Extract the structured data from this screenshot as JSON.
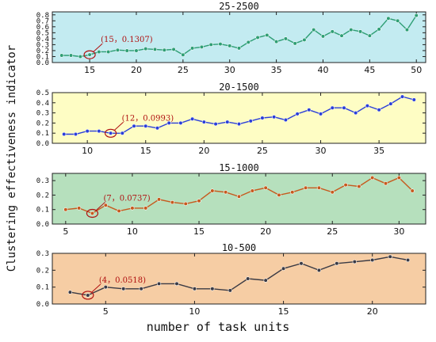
{
  "figure": {
    "ylabel": "Clustering effectiveness indicator",
    "xlabel": "number of task units"
  },
  "chart_data": [
    {
      "type": "line",
      "title": "25-2500",
      "background": "#c3ebf1",
      "color": "#2e9e74",
      "x": [
        12,
        13,
        14,
        15,
        16,
        17,
        18,
        19,
        20,
        21,
        22,
        23,
        24,
        25,
        26,
        27,
        28,
        29,
        30,
        31,
        32,
        33,
        34,
        35,
        36,
        37,
        38,
        39,
        40,
        41,
        42,
        43,
        44,
        45,
        46,
        47,
        48,
        49,
        50
      ],
      "values": [
        0.12,
        0.12,
        0.1,
        0.1307,
        0.18,
        0.18,
        0.21,
        0.2,
        0.2,
        0.23,
        0.22,
        0.21,
        0.22,
        0.13,
        0.24,
        0.26,
        0.3,
        0.31,
        0.28,
        0.24,
        0.34,
        0.42,
        0.46,
        0.35,
        0.4,
        0.32,
        0.38,
        0.55,
        0.44,
        0.52,
        0.45,
        0.55,
        0.52,
        0.45,
        0.56,
        0.74,
        0.7,
        0.55,
        0.79
      ],
      "xlim": [
        11,
        51
      ],
      "ylim": [
        0,
        0.85
      ],
      "xticks": [
        15,
        20,
        25,
        30,
        35,
        40,
        45,
        50
      ],
      "yticks": [
        0,
        0.1,
        0.2,
        0.3,
        0.4,
        0.5,
        0.6,
        0.7,
        0.8
      ],
      "ytick_labels": [
        "0.0",
        "0.1",
        "0.2",
        "0.3",
        "0.4",
        "0.5",
        "0.6",
        "0.7",
        "0.8"
      ],
      "annotation": {
        "x": 15,
        "y": 0.1307,
        "text": "(15，0.1307)"
      }
    },
    {
      "type": "line",
      "title": "20-1500",
      "background": "#fefdc4",
      "color": "#2b3fd8",
      "x": [
        8,
        9,
        10,
        11,
        12,
        13,
        14,
        15,
        16,
        17,
        18,
        19,
        20,
        21,
        22,
        23,
        24,
        25,
        26,
        27,
        28,
        29,
        30,
        31,
        32,
        33,
        34,
        35,
        36,
        37,
        38
      ],
      "values": [
        0.09,
        0.09,
        0.12,
        0.12,
        0.0993,
        0.1,
        0.17,
        0.17,
        0.15,
        0.2,
        0.2,
        0.24,
        0.21,
        0.19,
        0.21,
        0.19,
        0.22,
        0.25,
        0.26,
        0.23,
        0.29,
        0.33,
        0.29,
        0.35,
        0.35,
        0.3,
        0.37,
        0.33,
        0.39,
        0.46,
        0.43
      ],
      "xlim": [
        7,
        39
      ],
      "ylim": [
        0,
        0.5
      ],
      "xticks": [
        10,
        15,
        20,
        25,
        30,
        35
      ],
      "yticks": [
        0,
        0.1,
        0.2,
        0.3,
        0.4,
        0.5
      ],
      "ytick_labels": [
        "0.0",
        "0.1",
        "0.2",
        "0.3",
        "0.4",
        "0.5"
      ],
      "annotation": {
        "x": 12,
        "y": 0.0993,
        "text": "(12，0.0993)"
      }
    },
    {
      "type": "line",
      "title": "15-1000",
      "background": "#b6e0bd",
      "color": "#c65a1e",
      "x": [
        5,
        6,
        7,
        8,
        9,
        10,
        11,
        12,
        13,
        14,
        15,
        16,
        17,
        18,
        19,
        20,
        21,
        22,
        23,
        24,
        25,
        26,
        27,
        28,
        29,
        30,
        31
      ],
      "values": [
        0.1,
        0.11,
        0.0737,
        0.13,
        0.09,
        0.11,
        0.11,
        0.17,
        0.15,
        0.14,
        0.16,
        0.23,
        0.22,
        0.19,
        0.23,
        0.25,
        0.2,
        0.22,
        0.25,
        0.25,
        0.22,
        0.27,
        0.26,
        0.32,
        0.28,
        0.32,
        0.23
      ],
      "xlim": [
        4,
        32
      ],
      "ylim": [
        0,
        0.35
      ],
      "xticks": [
        5,
        10,
        15,
        20,
        25,
        30
      ],
      "yticks": [
        0,
        0.1,
        0.2,
        0.3
      ],
      "ytick_labels": [
        "0.0",
        "0.1",
        "0.2",
        "0.3"
      ],
      "annotation": {
        "x": 7,
        "y": 0.0737,
        "text": "(7，0.0737)"
      }
    },
    {
      "type": "line",
      "title": "10-500",
      "background": "#f6cda4",
      "color": "#3a3a44",
      "x": [
        3,
        4,
        5,
        6,
        7,
        8,
        9,
        10,
        11,
        12,
        13,
        14,
        15,
        16,
        17,
        18,
        19,
        20,
        21,
        22
      ],
      "values": [
        0.07,
        0.0518,
        0.1,
        0.09,
        0.09,
        0.12,
        0.12,
        0.09,
        0.09,
        0.08,
        0.15,
        0.14,
        0.21,
        0.24,
        0.2,
        0.24,
        0.25,
        0.26,
        0.28,
        0.26
      ],
      "xlim": [
        2,
        23
      ],
      "ylim": [
        0,
        0.3
      ],
      "xticks": [
        5,
        10,
        15,
        20
      ],
      "yticks": [
        0,
        0.1,
        0.2,
        0.3
      ],
      "ytick_labels": [
        "0.0",
        "0.1",
        "0.2",
        "0.3"
      ],
      "annotation": {
        "x": 4,
        "y": 0.0518,
        "text": "(4，0.0518)"
      }
    }
  ]
}
